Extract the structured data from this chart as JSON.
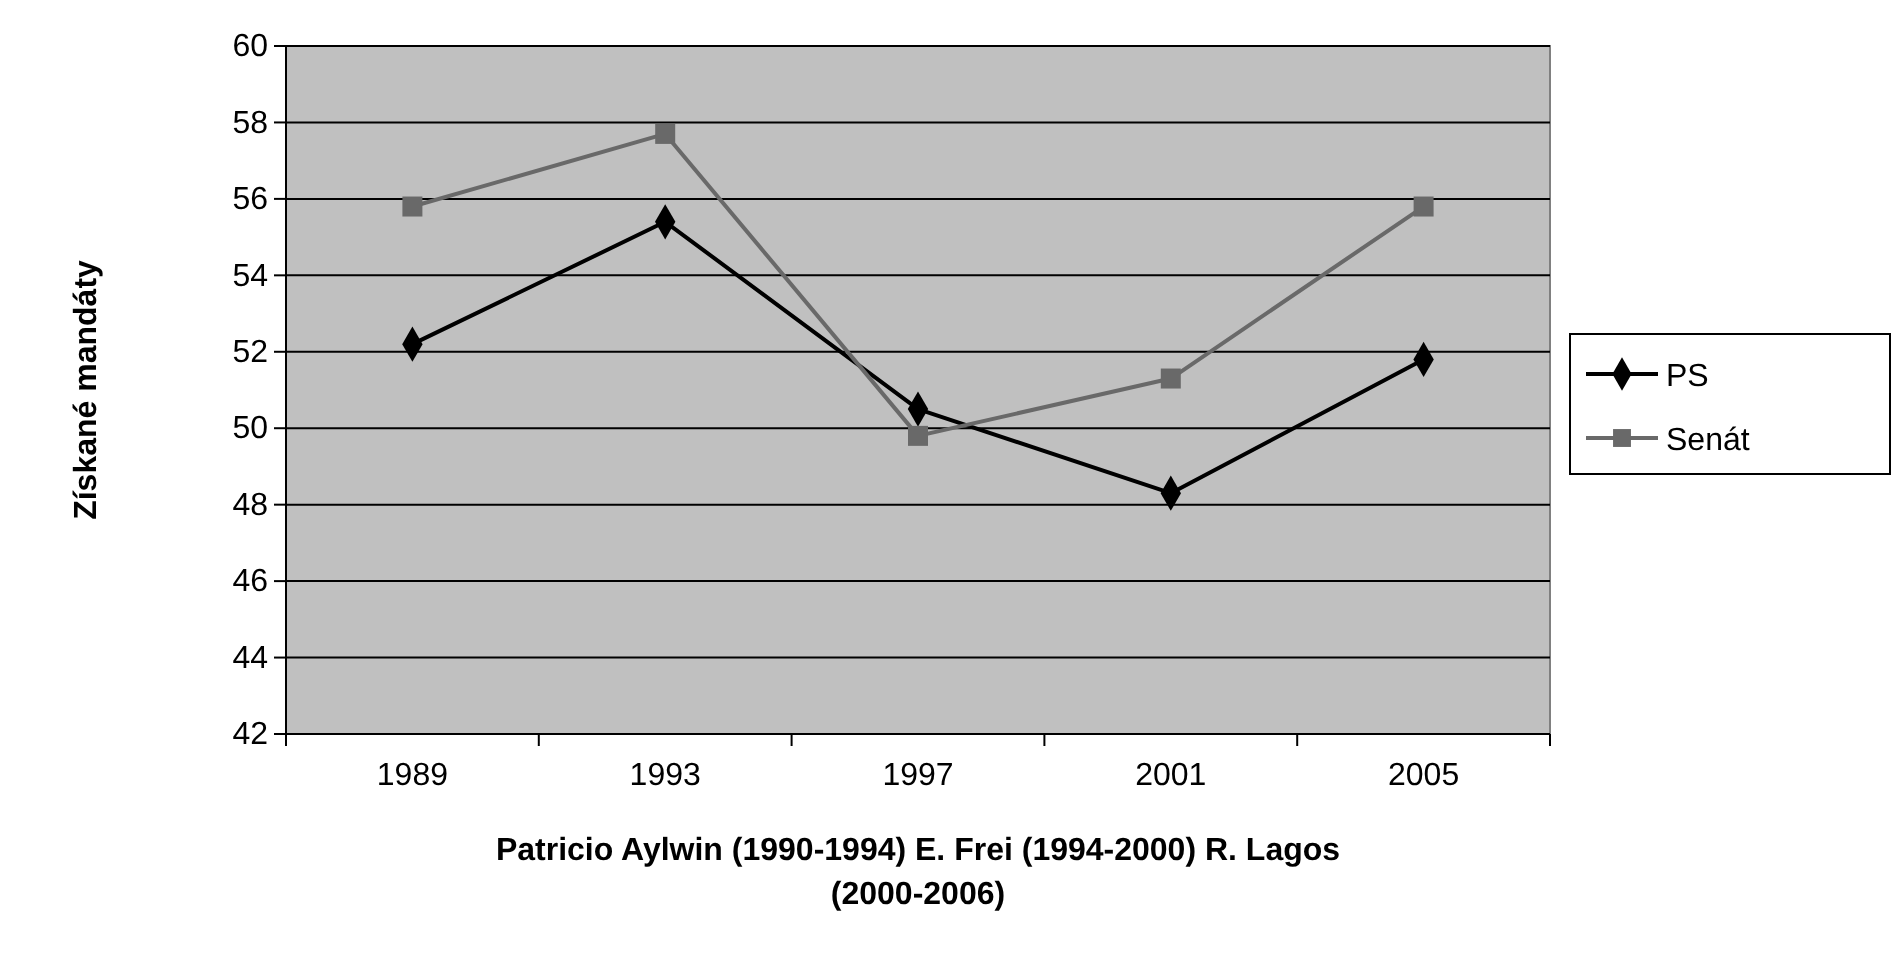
{
  "chart_data": {
    "type": "line",
    "xlabel": "Patricio Aylwin (1990-1994) E. Frei (1994-2000) R. Lagos (2000-2006)",
    "ylabel": "Získané mandáty",
    "categories": [
      "1989",
      "1993",
      "1997",
      "2001",
      "2005"
    ],
    "series": [
      {
        "name": "PS",
        "color": "#000000",
        "marker": "diamond",
        "values": [
          52.2,
          55.4,
          50.5,
          48.3,
          51.8
        ]
      },
      {
        "name": "Senát",
        "color": "#696969",
        "marker": "square",
        "values": [
          55.8,
          57.7,
          49.8,
          51.3,
          55.8
        ]
      }
    ],
    "ylim": [
      42,
      60
    ],
    "yticks": [
      42,
      44,
      46,
      48,
      50,
      52,
      54,
      56,
      58,
      60
    ],
    "grid": "y",
    "legend": "right"
  }
}
